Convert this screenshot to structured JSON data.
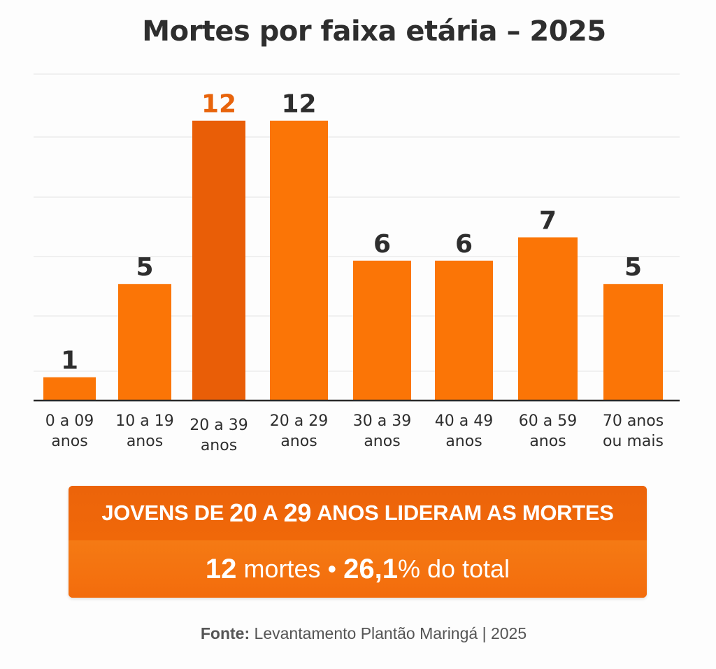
{
  "chart_data": {
    "type": "bar",
    "title": "Mortes por faixa etária – 2025",
    "categories": [
      [
        "0 a 09",
        "anos"
      ],
      [
        "10 a 19",
        "anos"
      ],
      [
        "20 a 39",
        "anos"
      ],
      [
        "20 a 29",
        "anos"
      ],
      [
        "30 a 39",
        "anos"
      ],
      [
        "40 a 49",
        "anos"
      ],
      [
        "60 a 59",
        "anos"
      ],
      [
        "70 anos",
        "ou mais"
      ]
    ],
    "values": [
      1,
      5,
      12,
      12,
      6,
      6,
      7,
      5
    ],
    "data_labels": [
      "1",
      "5",
      "12",
      "12",
      "6",
      "6",
      "7",
      "5"
    ],
    "highlighted_index": 2,
    "ylim": [
      0,
      14
    ],
    "grid": true,
    "xlabel": "",
    "ylabel": "",
    "colors": {
      "bar": "#fb7506",
      "highlight": "#e95e07",
      "highlight_label": "#e8640c",
      "label": "#2e2e2e",
      "grid": "#ececec",
      "axis": "#2a2a2a"
    }
  },
  "banner": {
    "headline_pre": "JOVENS DE",
    "headline_num1": "20",
    "headline_mid": "A",
    "headline_num2": "29",
    "headline_post": "ANOS LIDERAM AS MORTES",
    "count": "12",
    "count_label": "mortes •",
    "percent": "26,1",
    "percent_label": "% do total"
  },
  "source": {
    "label": "Fonte:",
    "text": "Levantamento Plantão Maringá | 2025"
  }
}
